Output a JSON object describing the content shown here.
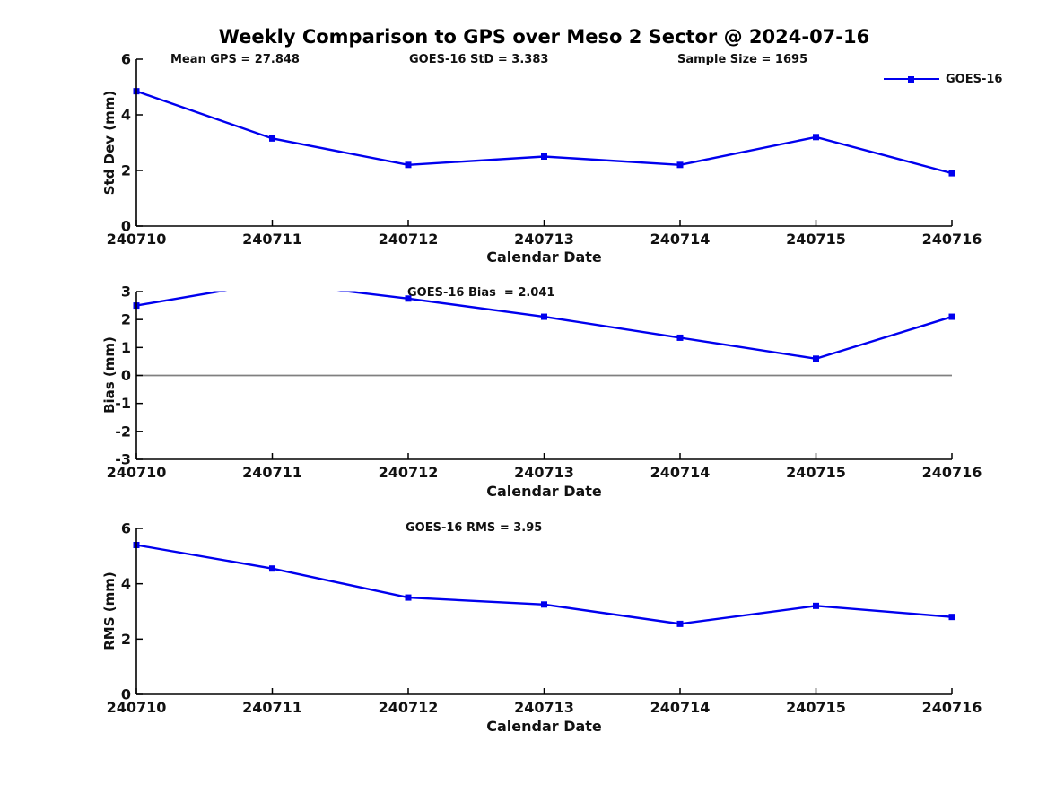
{
  "figure": {
    "title": "Weekly Comparison to GPS over Meso 2 Sector @ 2024-07-16",
    "colors": {
      "series": "#0000EE",
      "zero_line": "#808080",
      "axis": "#000000",
      "text": "#111111"
    }
  },
  "chart_data": [
    {
      "type": "line",
      "title": "",
      "xlabel": "Calendar Date",
      "ylabel": "Std Dev (mm)",
      "categories": [
        "240710",
        "240711",
        "240712",
        "240713",
        "240714",
        "240715",
        "240716"
      ],
      "series": [
        {
          "name": "GOES-16",
          "values": [
            4.85,
            3.15,
            2.2,
            2.5,
            2.2,
            3.2,
            1.9
          ]
        }
      ],
      "ylim": [
        0,
        6
      ],
      "yticks": [
        0,
        2,
        4,
        6
      ],
      "grid": false,
      "marker": "square",
      "legend": {
        "position": "top-right",
        "entries": [
          "GOES-16"
        ]
      },
      "annotations": [
        "Mean GPS = 27.848",
        "GOES-16 StD = 3.383",
        "Sample Size = 1695"
      ]
    },
    {
      "type": "line",
      "title": "",
      "xlabel": "Calendar Date",
      "ylabel": "Bias (mm)",
      "categories": [
        "240710",
        "240711",
        "240712",
        "240713",
        "240714",
        "240715",
        "240716"
      ],
      "series": [
        {
          "name": "GOES-16",
          "values": [
            2.5,
            3.33,
            2.75,
            2.1,
            1.35,
            0.6,
            2.1
          ]
        }
      ],
      "ylim": [
        -3,
        3
      ],
      "yticks": [
        3,
        2,
        1,
        0,
        -1,
        -2,
        -3
      ],
      "grid": false,
      "marker": "square",
      "zero_line": true,
      "annotations": [
        "GOES-16 Bias  = 2.041"
      ]
    },
    {
      "type": "line",
      "title": "",
      "xlabel": "Calendar Date",
      "ylabel": "RMS (mm)",
      "categories": [
        "240710",
        "240711",
        "240712",
        "240713",
        "240714",
        "240715",
        "240716"
      ],
      "series": [
        {
          "name": "GOES-16",
          "values": [
            5.4,
            4.55,
            3.5,
            3.25,
            2.55,
            3.2,
            2.8
          ]
        }
      ],
      "ylim": [
        0,
        6
      ],
      "yticks": [
        0,
        2,
        4,
        6
      ],
      "grid": false,
      "marker": "square",
      "annotations": [
        "GOES-16 RMS = 3.95"
      ]
    }
  ]
}
